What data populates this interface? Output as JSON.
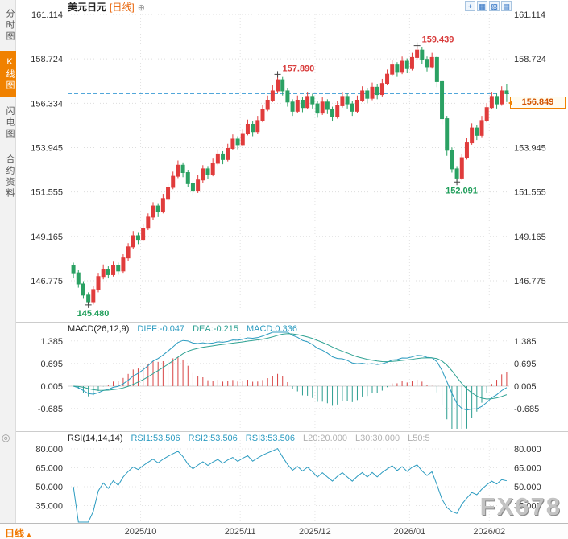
{
  "header": {
    "symbol": "美元日元",
    "period_label": "[日线]",
    "add_icon": "⊕",
    "toolbar_icons": [
      {
        "name": "crosshair-icon",
        "glyph": "+"
      },
      {
        "name": "indicator-panel-icon",
        "glyph": "▦"
      },
      {
        "name": "zoom-icon",
        "glyph": "▧"
      },
      {
        "name": "fullscreen-icon",
        "glyph": "▤"
      }
    ]
  },
  "sidebar": {
    "tabs": [
      {
        "name": "tab-timeline-chart",
        "label": "分时图",
        "active": false
      },
      {
        "name": "tab-kline-chart",
        "label": "K线图",
        "active": true
      },
      {
        "name": "tab-lightning-chart",
        "label": "闪电图",
        "active": false
      },
      {
        "name": "tab-contract-info",
        "label": "合约资料",
        "active": false
      }
    ]
  },
  "bottom_bar": {
    "period_selector": "日线",
    "arrow": "▲",
    "date_labels": [
      "2025/10",
      "2025/11",
      "2025/12",
      "2026/01",
      "2026/02"
    ]
  },
  "watermark": "FX678",
  "chart_data": [
    {
      "type": "candlestick",
      "title": "美元日元 日线",
      "y_ticks": [
        "161.114",
        "158.724",
        "156.334",
        "153.945",
        "151.555",
        "149.165",
        "146.775"
      ],
      "x_labels": [
        "2025/10",
        "2025/11",
        "2025/12",
        "2026/01",
        "2026/02"
      ],
      "month_start_indices": [
        14,
        34,
        49,
        68,
        84
      ],
      "current_price": 156.849,
      "current_price_label": "156.849",
      "up_color": "#e03c3c",
      "down_color": "#2ba163",
      "annotations": [
        {
          "text": "157.890",
          "price": 157.89,
          "index": 41,
          "kind": "high",
          "color": "#d83a3a"
        },
        {
          "text": "159.439",
          "price": 159.439,
          "index": 69,
          "kind": "high",
          "color": "#d83a3a"
        },
        {
          "text": "152.091",
          "price": 152.091,
          "index": 77,
          "kind": "low",
          "color": "#1f9e5a"
        },
        {
          "text": "145.480",
          "price": 145.48,
          "index": 3,
          "kind": "low",
          "color": "#1f9e5a"
        }
      ],
      "ohlc": [
        [
          147.6,
          147.75,
          146.9,
          147.2
        ],
        [
          147.2,
          147.35,
          146.4,
          146.6
        ],
        [
          146.6,
          146.75,
          145.8,
          146.0
        ],
        [
          146.0,
          146.15,
          145.48,
          145.6
        ],
        [
          145.6,
          146.5,
          145.5,
          146.3
        ],
        [
          146.3,
          147.2,
          146.15,
          147.0
        ],
        [
          147.0,
          147.65,
          146.85,
          147.4
        ],
        [
          147.4,
          147.55,
          146.9,
          147.1
        ],
        [
          147.1,
          147.8,
          147.0,
          147.6
        ],
        [
          147.6,
          147.75,
          147.1,
          147.3
        ],
        [
          147.3,
          148.2,
          147.2,
          148.0
        ],
        [
          148.0,
          148.8,
          147.85,
          148.6
        ],
        [
          148.6,
          149.45,
          148.5,
          149.2
        ],
        [
          149.2,
          149.35,
          148.75,
          149.0
        ],
        [
          149.0,
          149.85,
          148.9,
          149.6
        ],
        [
          149.6,
          150.4,
          149.5,
          150.2
        ],
        [
          150.2,
          151.0,
          150.05,
          150.8
        ],
        [
          150.8,
          150.95,
          150.2,
          150.5
        ],
        [
          150.5,
          151.45,
          150.4,
          151.2
        ],
        [
          151.2,
          152.0,
          151.05,
          151.8
        ],
        [
          151.8,
          152.65,
          151.7,
          152.4
        ],
        [
          152.4,
          153.25,
          152.3,
          153.0
        ],
        [
          153.0,
          153.15,
          152.35,
          152.6
        ],
        [
          152.6,
          152.75,
          151.8,
          152.0
        ],
        [
          152.0,
          152.15,
          151.35,
          151.6
        ],
        [
          151.6,
          152.45,
          151.5,
          152.2
        ],
        [
          152.2,
          153.0,
          152.05,
          152.8
        ],
        [
          152.8,
          152.95,
          152.25,
          152.5
        ],
        [
          152.5,
          153.35,
          152.4,
          153.1
        ],
        [
          153.1,
          153.85,
          153.0,
          153.6
        ],
        [
          153.6,
          153.75,
          153.05,
          153.3
        ],
        [
          153.3,
          154.15,
          153.2,
          153.9
        ],
        [
          153.9,
          154.65,
          153.8,
          154.4
        ],
        [
          154.4,
          154.55,
          153.85,
          154.1
        ],
        [
          154.1,
          154.95,
          154.0,
          154.7
        ],
        [
          154.7,
          155.45,
          154.6,
          155.2
        ],
        [
          155.2,
          155.35,
          154.55,
          154.8
        ],
        [
          154.8,
          155.65,
          154.7,
          155.4
        ],
        [
          155.4,
          156.25,
          155.3,
          156.0
        ],
        [
          156.0,
          156.75,
          155.9,
          156.5
        ],
        [
          156.5,
          157.3,
          156.4,
          157.0
        ],
        [
          157.0,
          157.89,
          156.9,
          157.6
        ],
        [
          157.6,
          157.75,
          156.75,
          157.0
        ],
        [
          157.0,
          157.15,
          156.15,
          156.4
        ],
        [
          156.4,
          156.55,
          155.65,
          155.9
        ],
        [
          155.9,
          156.75,
          155.8,
          156.5
        ],
        [
          156.5,
          156.65,
          155.85,
          156.1
        ],
        [
          156.1,
          156.95,
          156.0,
          156.7
        ],
        [
          156.7,
          156.85,
          156.05,
          156.3
        ],
        [
          156.3,
          156.45,
          155.55,
          155.8
        ],
        [
          155.8,
          156.65,
          155.7,
          156.4
        ],
        [
          156.4,
          156.55,
          155.75,
          156.0
        ],
        [
          156.0,
          156.15,
          155.35,
          155.6
        ],
        [
          155.6,
          156.45,
          155.5,
          156.2
        ],
        [
          156.2,
          156.95,
          156.1,
          156.7
        ],
        [
          156.7,
          156.85,
          156.05,
          156.3
        ],
        [
          156.3,
          156.45,
          155.65,
          155.9
        ],
        [
          155.9,
          156.75,
          155.8,
          156.5
        ],
        [
          156.5,
          157.25,
          156.4,
          157.0
        ],
        [
          157.0,
          157.15,
          156.35,
          156.6
        ],
        [
          156.6,
          157.45,
          156.5,
          157.2
        ],
        [
          157.2,
          157.35,
          156.55,
          156.8
        ],
        [
          156.8,
          157.65,
          156.7,
          157.4
        ],
        [
          157.4,
          158.15,
          157.3,
          157.9
        ],
        [
          157.9,
          158.65,
          157.8,
          158.4
        ],
        [
          158.4,
          158.55,
          157.75,
          158.0
        ],
        [
          158.0,
          158.85,
          157.9,
          158.6
        ],
        [
          158.6,
          158.75,
          157.95,
          158.2
        ],
        [
          158.2,
          159.05,
          158.1,
          158.8
        ],
        [
          158.8,
          159.439,
          158.7,
          159.2
        ],
        [
          159.2,
          159.35,
          158.45,
          158.7
        ],
        [
          158.7,
          158.85,
          158.05,
          158.3
        ],
        [
          158.3,
          159.05,
          158.2,
          158.8
        ],
        [
          158.8,
          158.9,
          157.2,
          157.5
        ],
        [
          157.5,
          157.6,
          155.2,
          155.5
        ],
        [
          155.5,
          155.65,
          153.5,
          153.8
        ],
        [
          153.8,
          153.95,
          152.6,
          152.8
        ],
        [
          152.8,
          152.95,
          152.091,
          152.3
        ],
        [
          152.3,
          153.6,
          152.2,
          153.4
        ],
        [
          153.4,
          154.45,
          153.3,
          154.2
        ],
        [
          154.2,
          155.25,
          154.1,
          155.0
        ],
        [
          155.0,
          155.15,
          154.35,
          154.6
        ],
        [
          154.6,
          155.65,
          154.5,
          155.4
        ],
        [
          155.4,
          156.35,
          155.3,
          156.1
        ],
        [
          156.1,
          156.95,
          156.0,
          156.7
        ],
        [
          156.7,
          156.85,
          156.05,
          156.3
        ],
        [
          156.3,
          157.25,
          156.2,
          157.0
        ],
        [
          157.0,
          157.35,
          156.4,
          156.849
        ]
      ]
    },
    {
      "type": "macd",
      "params": "MACD(26,12,9)",
      "values": {
        "DIFF": -0.047,
        "DEA": -0.215,
        "MACD": 0.336
      },
      "legend": [
        {
          "label": "DIFF:-0.047",
          "color": "#2b9bc0"
        },
        {
          "label": "DEA:-0.215",
          "color": "#2fa293"
        },
        {
          "label": "MACD:0.336",
          "color": "#2b9bc0"
        }
      ],
      "y_ticks": [
        "1.385",
        "0.695",
        "0.005",
        "-0.685"
      ],
      "diff_color": "#2b9bc0",
      "dea_color": "#2fa293",
      "hist_up_color": "#d84444",
      "hist_down_color": "#2a9d8f"
    },
    {
      "type": "rsi",
      "params": "RSI(14,14,14)",
      "values": {
        "RSI1": 53.506,
        "RSI2": 53.506,
        "RSI3": 53.506
      },
      "legend": [
        {
          "label": "RSI1:53.506",
          "color": "#2b9bc0"
        },
        {
          "label": "RSI2:53.506",
          "color": "#2b9bc0"
        },
        {
          "label": "RSI3:53.506",
          "color": "#2b9bc0"
        },
        {
          "label": "L20:20.000",
          "color": "#b0b0b0"
        },
        {
          "label": "L30:30.000",
          "color": "#b0b0b0"
        },
        {
          "label": "L50:5",
          "color": "#b0b0b0"
        }
      ],
      "y_ticks": [
        "80.000",
        "65.000",
        "50.000",
        "35.000"
      ],
      "line_color": "#2b9bc0",
      "period": 14
    }
  ]
}
